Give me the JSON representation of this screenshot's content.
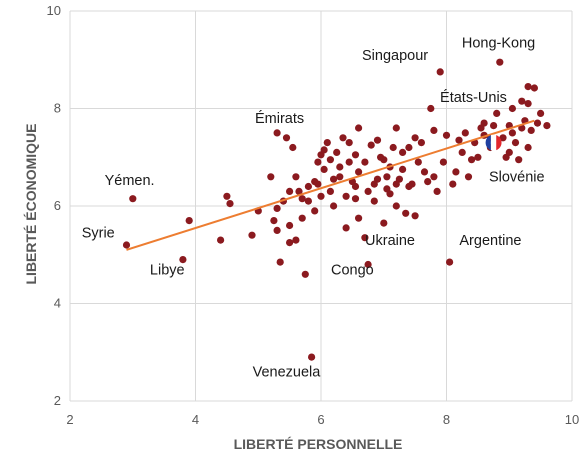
{
  "chart_data": {
    "type": "scatter",
    "title": "",
    "xlabel": "LIBERTÉ PERSONNELLE",
    "ylabel": "LIBERTÉ ÉCONOMIQUE",
    "xlim": [
      2,
      10
    ],
    "ylim": [
      2,
      10
    ],
    "xticks": [
      "2",
      "4",
      "6",
      "8",
      "10"
    ],
    "yticks": [
      "2",
      "4",
      "6",
      "8",
      "10"
    ],
    "grid": true,
    "colors": {
      "points": "#8b1a1f",
      "trend": "#ed7d31",
      "grid": "#d9d9d9",
      "text": "#595959"
    },
    "trendline": {
      "x": [
        2.9,
        9.4
      ],
      "y": [
        5.1,
        7.75
      ]
    },
    "flag_marker": {
      "x": 8.75,
      "y": 7.3,
      "icon": "france-flag-icon",
      "colors": [
        "#1f3fa0",
        "#ffffff",
        "#e2262c"
      ]
    },
    "annotations": [
      {
        "text": "Hong-Kong",
        "x": 8.83,
        "y": 9.25
      },
      {
        "text": "Singapour",
        "x": 7.18,
        "y": 9.0
      },
      {
        "text": "États-Unis",
        "x": 8.43,
        "y": 8.13
      },
      {
        "text": "Émirats",
        "x": 5.34,
        "y": 7.7
      },
      {
        "text": "Yémen.",
        "x": 2.95,
        "y": 6.43
      },
      {
        "text": "Slovénie",
        "x": 9.12,
        "y": 6.5
      },
      {
        "text": "Syrie",
        "x": 2.45,
        "y": 5.35
      },
      {
        "text": "Argentine",
        "x": 8.7,
        "y": 5.2
      },
      {
        "text": "Ukraine",
        "x": 7.1,
        "y": 5.2
      },
      {
        "text": "Libye",
        "x": 3.55,
        "y": 4.6
      },
      {
        "text": "Congo",
        "x": 6.5,
        "y": 4.6
      },
      {
        "text": "Venezuela",
        "x": 5.45,
        "y": 2.5
      }
    ],
    "series": [
      {
        "points": [
          [
            8.85,
            8.95
          ],
          [
            7.9,
            8.75
          ],
          [
            7.75,
            8.0
          ],
          [
            9.4,
            8.42
          ],
          [
            9.3,
            8.45
          ],
          [
            9.2,
            8.15
          ],
          [
            9.05,
            8.0
          ],
          [
            9.3,
            8.1
          ],
          [
            9.5,
            7.9
          ],
          [
            9.45,
            7.7
          ],
          [
            9.6,
            7.65
          ],
          [
            9.35,
            7.55
          ],
          [
            9.2,
            7.6
          ],
          [
            9.0,
            7.65
          ],
          [
            8.8,
            7.9
          ],
          [
            8.6,
            7.7
          ],
          [
            8.9,
            7.4
          ],
          [
            9.1,
            7.3
          ],
          [
            8.7,
            7.2
          ],
          [
            8.5,
            7.0
          ],
          [
            9.0,
            7.1
          ],
          [
            9.3,
            7.2
          ],
          [
            8.3,
            7.5
          ],
          [
            8.2,
            7.35
          ],
          [
            8.0,
            7.45
          ],
          [
            7.8,
            7.55
          ],
          [
            7.5,
            7.4
          ],
          [
            7.4,
            7.2
          ],
          [
            7.2,
            7.6
          ],
          [
            8.45,
            7.3
          ],
          [
            9.15,
            6.95
          ],
          [
            8.55,
            7.6
          ],
          [
            5.3,
            7.5
          ],
          [
            5.45,
            7.4
          ],
          [
            5.55,
            7.2
          ],
          [
            3.0,
            6.15
          ],
          [
            2.9,
            5.2
          ],
          [
            3.8,
            4.9
          ],
          [
            3.9,
            5.7
          ],
          [
            4.4,
            5.3
          ],
          [
            4.5,
            6.2
          ],
          [
            4.55,
            6.05
          ],
          [
            4.9,
            5.4
          ],
          [
            5.0,
            5.9
          ],
          [
            5.2,
            6.6
          ],
          [
            5.3,
            5.5
          ],
          [
            5.25,
            5.7
          ],
          [
            5.35,
            4.85
          ],
          [
            5.5,
            5.25
          ],
          [
            5.5,
            6.3
          ],
          [
            5.6,
            6.6
          ],
          [
            5.65,
            6.3
          ],
          [
            5.7,
            5.75
          ],
          [
            5.75,
            4.6
          ],
          [
            5.8,
            6.4
          ],
          [
            5.9,
            5.9
          ],
          [
            5.95,
            6.9
          ],
          [
            6.0,
            7.05
          ],
          [
            6.05,
            6.75
          ],
          [
            6.1,
            7.3
          ],
          [
            6.15,
            6.3
          ],
          [
            6.25,
            7.1
          ],
          [
            6.3,
            6.8
          ],
          [
            6.35,
            7.4
          ],
          [
            6.45,
            6.9
          ],
          [
            6.5,
            6.5
          ],
          [
            6.55,
            7.05
          ],
          [
            6.6,
            5.75
          ],
          [
            6.6,
            7.6
          ],
          [
            6.7,
            6.9
          ],
          [
            6.7,
            5.35
          ],
          [
            6.75,
            4.8
          ],
          [
            6.8,
            7.25
          ],
          [
            6.85,
            6.1
          ],
          [
            6.9,
            6.55
          ],
          [
            6.95,
            7.0
          ],
          [
            7.0,
            5.65
          ],
          [
            7.05,
            6.35
          ],
          [
            7.1,
            6.8
          ],
          [
            7.15,
            7.2
          ],
          [
            7.2,
            6.0
          ],
          [
            7.25,
            6.55
          ],
          [
            7.3,
            7.1
          ],
          [
            7.35,
            5.85
          ],
          [
            7.45,
            6.45
          ],
          [
            7.5,
            5.8
          ],
          [
            7.55,
            6.9
          ],
          [
            7.6,
            7.3
          ],
          [
            7.7,
            6.5
          ],
          [
            7.8,
            6.6
          ],
          [
            7.85,
            6.3
          ],
          [
            7.95,
            6.9
          ],
          [
            8.05,
            4.85
          ],
          [
            8.1,
            6.45
          ],
          [
            8.15,
            6.7
          ],
          [
            8.25,
            7.1
          ],
          [
            8.35,
            6.6
          ],
          [
            6.2,
            6.55
          ],
          [
            6.0,
            6.2
          ],
          [
            5.8,
            6.1
          ],
          [
            6.4,
            6.2
          ],
          [
            6.55,
            6.4
          ],
          [
            6.85,
            6.45
          ],
          [
            7.0,
            6.95
          ],
          [
            6.4,
            5.55
          ],
          [
            5.85,
            2.9
          ],
          [
            5.4,
            6.1
          ],
          [
            5.5,
            5.6
          ],
          [
            5.7,
            6.15
          ],
          [
            5.95,
            6.45
          ],
          [
            6.15,
            6.95
          ],
          [
            6.3,
            6.6
          ],
          [
            6.45,
            7.3
          ],
          [
            6.9,
            7.35
          ],
          [
            7.1,
            6.25
          ],
          [
            7.3,
            6.75
          ],
          [
            7.4,
            6.4
          ],
          [
            7.65,
            6.7
          ],
          [
            8.4,
            6.95
          ],
          [
            8.6,
            7.45
          ],
          [
            8.95,
            7.0
          ],
          [
            9.25,
            7.75
          ],
          [
            8.75,
            7.65
          ],
          [
            8.7,
            7.4
          ],
          [
            9.05,
            7.5
          ],
          [
            6.6,
            6.7
          ],
          [
            6.75,
            6.3
          ],
          [
            6.2,
            6.0
          ],
          [
            5.9,
            6.5
          ],
          [
            7.05,
            6.6
          ],
          [
            5.6,
            5.3
          ],
          [
            5.3,
            5.95
          ],
          [
            6.55,
            6.15
          ],
          [
            7.2,
            6.45
          ],
          [
            6.05,
            7.15
          ]
        ]
      }
    ]
  }
}
